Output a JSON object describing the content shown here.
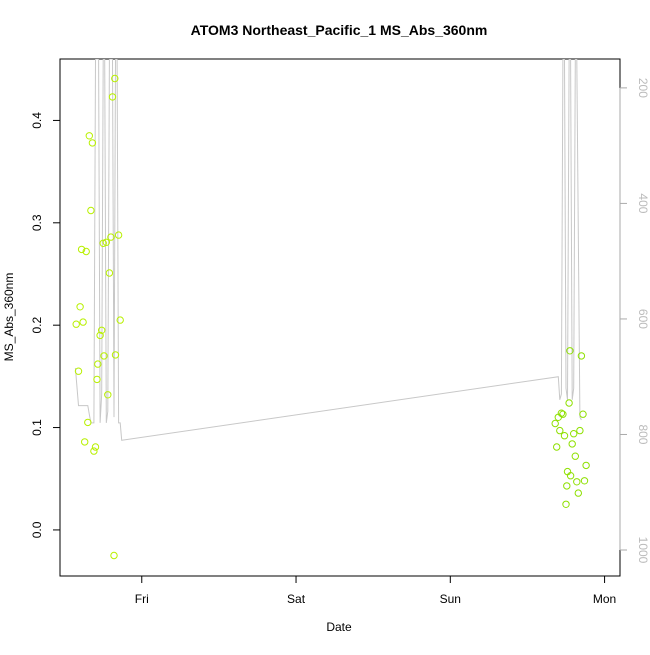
{
  "chart_data": {
    "type": "scatter",
    "title": "ATOM3 Northeast_Pacific_1 MS_Abs_360nm",
    "xlabel": "Date",
    "ylabel": "MS_Abs_360nm",
    "ylabel_right": "",
    "x_ticks": [
      {
        "label": "Fri",
        "day": 1.0
      },
      {
        "label": "Sat",
        "day": 2.0
      },
      {
        "label": "Sun",
        "day": 3.0
      },
      {
        "label": "Mon",
        "day": 4.0
      }
    ],
    "xlim_day": [
      0.47,
      4.1
    ],
    "ylim": [
      -0.045,
      0.46
    ],
    "y_ticks": [
      0.0,
      0.1,
      0.2,
      0.3,
      0.4
    ],
    "y2lim": [
      1045,
      150
    ],
    "y2_ticks": [
      200,
      400,
      600,
      800,
      1000
    ],
    "grid": false,
    "series": [
      {
        "kind": "points",
        "color": "#b8f000",
        "points": [
          [
            0.59,
            0.155
          ],
          [
            0.6,
            0.218
          ],
          [
            0.61,
            0.274
          ],
          [
            0.62,
            0.203
          ],
          [
            0.63,
            0.086
          ],
          [
            0.64,
            0.272
          ],
          [
            0.65,
            0.105
          ],
          [
            0.66,
            0.385
          ],
          [
            0.67,
            0.312
          ],
          [
            0.68,
            0.378
          ],
          [
            0.69,
            0.077
          ],
          [
            0.7,
            0.081
          ],
          [
            0.71,
            0.147
          ],
          [
            0.715,
            0.162
          ],
          [
            0.73,
            0.19
          ],
          [
            0.74,
            0.195
          ],
          [
            0.75,
            0.28
          ],
          [
            0.755,
            0.17
          ],
          [
            0.77,
            0.281
          ],
          [
            0.78,
            0.132
          ],
          [
            0.79,
            0.251
          ],
          [
            0.8,
            0.286
          ],
          [
            0.81,
            0.423
          ],
          [
            0.82,
            -0.025
          ],
          [
            0.825,
            0.441
          ],
          [
            0.83,
            0.171
          ],
          [
            0.85,
            0.288
          ],
          [
            0.86,
            0.205
          ],
          [
            0.575,
            0.201
          ]
        ]
      },
      {
        "kind": "points",
        "color": "#8ee000",
        "points": [
          [
            3.68,
            0.104
          ],
          [
            3.69,
            0.081
          ],
          [
            3.7,
            0.11
          ],
          [
            3.71,
            0.097
          ],
          [
            3.72,
            0.114
          ],
          [
            3.73,
            0.113
          ],
          [
            3.74,
            0.092
          ],
          [
            3.75,
            0.025
          ],
          [
            3.755,
            0.043
          ],
          [
            3.76,
            0.057
          ],
          [
            3.77,
            0.124
          ],
          [
            3.775,
            0.175
          ],
          [
            3.78,
            0.053
          ],
          [
            3.79,
            0.084
          ],
          [
            3.8,
            0.094
          ],
          [
            3.81,
            0.072
          ],
          [
            3.82,
            0.047
          ],
          [
            3.83,
            0.036
          ],
          [
            3.84,
            0.097
          ],
          [
            3.85,
            0.17
          ],
          [
            3.86,
            0.113
          ],
          [
            3.87,
            0.048
          ],
          [
            3.88,
            0.063
          ]
        ]
      },
      {
        "kind": "line",
        "axis": "right",
        "color": "#c8c8c8",
        "points": [
          [
            0.57,
            685
          ],
          [
            0.59,
            750
          ],
          [
            0.63,
            750
          ],
          [
            0.65,
            750
          ],
          [
            0.66,
            765
          ],
          [
            0.67,
            780
          ],
          [
            0.69,
            780
          ],
          [
            0.7,
            150
          ],
          [
            0.72,
            150
          ],
          [
            0.73,
            780
          ],
          [
            0.74,
            730
          ],
          [
            0.75,
            150
          ],
          [
            0.76,
            150
          ],
          [
            0.77,
            780
          ],
          [
            0.78,
            760
          ],
          [
            0.79,
            150
          ],
          [
            0.81,
            150
          ],
          [
            0.82,
            770
          ],
          [
            0.83,
            150
          ],
          [
            0.84,
            150
          ],
          [
            0.85,
            780
          ],
          [
            0.86,
            780
          ],
          [
            0.87,
            810
          ],
          [
            3.7,
            700
          ],
          [
            3.71,
            740
          ],
          [
            3.72,
            730
          ],
          [
            3.73,
            150
          ],
          [
            3.74,
            150
          ],
          [
            3.75,
            720
          ],
          [
            3.76,
            740
          ],
          [
            3.77,
            150
          ],
          [
            3.78,
            150
          ],
          [
            3.79,
            740
          ],
          [
            3.8,
            720
          ],
          [
            3.81,
            150
          ],
          [
            3.82,
            150
          ],
          [
            3.84,
            770
          ],
          [
            3.85,
            775
          ]
        ]
      }
    ]
  }
}
